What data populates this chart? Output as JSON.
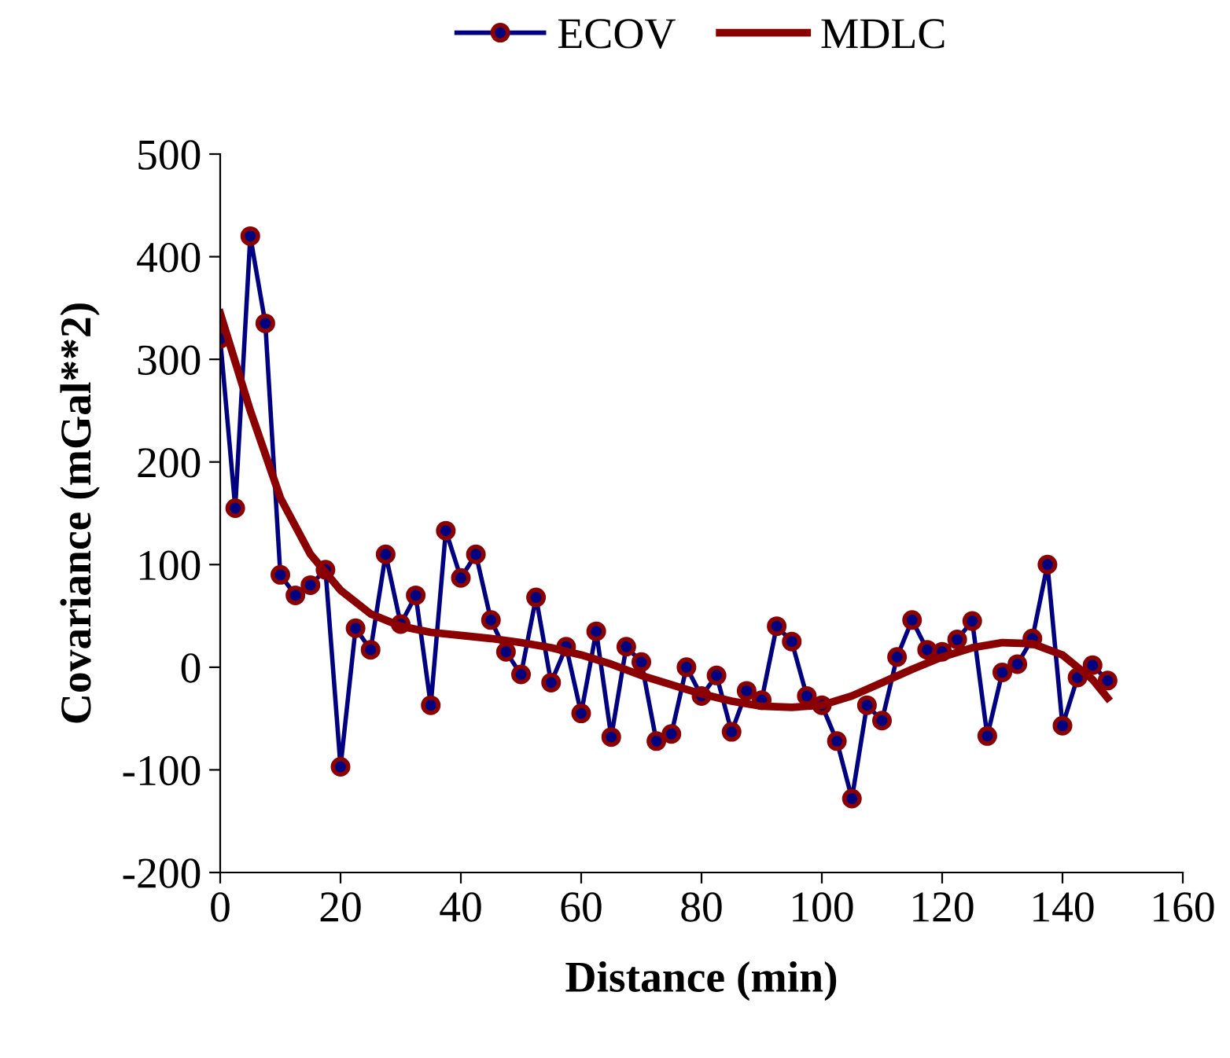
{
  "chart_data": {
    "type": "line",
    "xlabel": "Distance (min)",
    "ylabel": "Covariance (mGal**2)",
    "xlim": [
      0,
      160
    ],
    "xticks": [
      0,
      20,
      40,
      60,
      80,
      100,
      120,
      140,
      160
    ],
    "ylim": [
      -200,
      500
    ],
    "yticks": [
      -200,
      -100,
      0,
      100,
      200,
      300,
      400,
      500
    ],
    "grid": false,
    "legend": "top",
    "series": [
      {
        "name": "ECOV",
        "color": "#000080",
        "marker": "circle",
        "x": [
          0,
          2.5,
          5,
          7.5,
          10,
          12.5,
          15,
          17.5,
          20,
          22.5,
          25,
          27.5,
          30,
          32.5,
          35,
          37.5,
          40,
          42.5,
          45,
          47.5,
          50,
          52.5,
          55,
          57.5,
          60,
          62.5,
          65,
          67.5,
          70,
          72.5,
          75,
          77.5,
          80,
          82.5,
          85,
          87.5,
          90,
          92.5,
          95,
          97.5,
          100,
          102.5,
          105,
          107.5,
          110,
          112.5,
          115,
          117.5,
          120,
          122.5,
          125,
          127.5,
          130,
          132.5,
          135,
          137.5,
          140,
          142.5,
          145,
          147.5
        ],
        "values": [
          320,
          155,
          420,
          335,
          90,
          70,
          80,
          95,
          -97,
          38,
          17,
          110,
          42,
          70,
          -37,
          133,
          87,
          110,
          46,
          15,
          -7,
          68,
          -15,
          20,
          -45,
          35,
          -68,
          20,
          5,
          -72,
          -65,
          0,
          -28,
          -8,
          -63,
          -23,
          -32,
          40,
          25,
          -28,
          -37,
          -72,
          -128,
          -37,
          -52,
          10,
          46,
          17,
          15,
          27,
          45,
          -67,
          -5,
          3,
          28,
          100,
          -57,
          -10,
          2,
          -13
        ]
      },
      {
        "name": "MDLC",
        "color": "#8b0000",
        "marker": "none",
        "x": [
          0,
          5,
          10,
          15,
          20,
          25,
          30,
          35,
          40,
          45,
          50,
          55,
          60,
          65,
          70,
          75,
          80,
          85,
          90,
          95,
          100,
          105,
          110,
          115,
          120,
          125,
          130,
          135,
          140,
          145,
          147.5
        ],
        "values": [
          345,
          250,
          165,
          110,
          75,
          52,
          40,
          34,
          31,
          28,
          24,
          19,
          12,
          3,
          -8,
          -17,
          -26,
          -33,
          -38,
          -39,
          -37,
          -28,
          -15,
          -2,
          10,
          19,
          24,
          23,
          12,
          -12,
          -30
        ]
      }
    ]
  }
}
